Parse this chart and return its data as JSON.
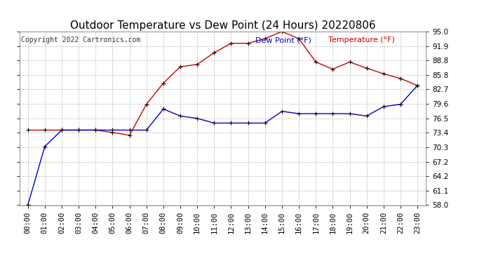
{
  "title": "Outdoor Temperature vs Dew Point (24 Hours) 20220806",
  "copyright": "Copyright 2022 Cartronics.com",
  "legend_dew": "Dew Point (°F)",
  "legend_temp": "Temperature (°F)",
  "hours": [
    "00:00",
    "01:00",
    "02:00",
    "03:00",
    "04:00",
    "05:00",
    "06:00",
    "07:00",
    "08:00",
    "09:00",
    "10:00",
    "11:00",
    "12:00",
    "13:00",
    "14:00",
    "15:00",
    "16:00",
    "17:00",
    "18:00",
    "19:00",
    "20:00",
    "21:00",
    "22:00",
    "23:00"
  ],
  "temperature": [
    74.0,
    74.0,
    74.0,
    74.0,
    74.0,
    73.5,
    72.9,
    79.5,
    84.0,
    87.5,
    88.0,
    90.5,
    92.5,
    92.5,
    93.5,
    95.0,
    93.5,
    88.5,
    87.0,
    88.5,
    87.2,
    86.0,
    85.0,
    83.5
  ],
  "dew_point": [
    58.0,
    70.5,
    74.0,
    74.0,
    74.0,
    74.0,
    74.0,
    74.0,
    78.5,
    77.0,
    76.5,
    75.5,
    75.5,
    75.5,
    75.5,
    78.0,
    77.5,
    77.5,
    77.5,
    77.5,
    77.0,
    79.0,
    79.5,
    83.5
  ],
  "ylim_min": 58.0,
  "ylim_max": 95.0,
  "yticks": [
    58.0,
    61.1,
    64.2,
    67.2,
    70.3,
    73.4,
    76.5,
    79.6,
    82.7,
    85.8,
    88.8,
    91.9,
    95.0
  ],
  "temp_color": "#cc0000",
  "dew_color": "#0000cc",
  "marker_color": "#000000",
  "background_color": "#ffffff",
  "grid_color": "#bbbbbb",
  "title_fontsize": 11,
  "tick_fontsize": 7.5,
  "copyright_fontsize": 7,
  "legend_fontsize": 8
}
